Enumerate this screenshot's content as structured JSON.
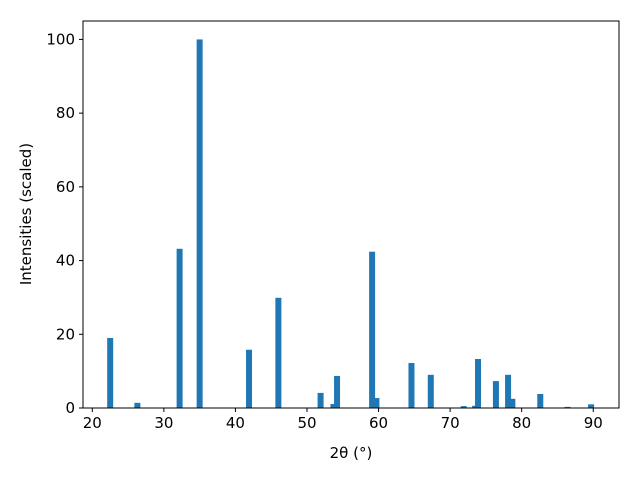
{
  "chart_data": {
    "type": "bar",
    "x": [
      22.5,
      26.3,
      32.2,
      35.0,
      41.9,
      46.0,
      51.9,
      53.7,
      54.2,
      59.1,
      59.7,
      64.6,
      67.3,
      71.9,
      73.5,
      73.9,
      76.4,
      78.1,
      78.7,
      82.6,
      86.4,
      89.7
    ],
    "values": [
      19,
      1.4,
      43.2,
      100,
      15.8,
      29.9,
      4.1,
      1.1,
      8.7,
      42.4,
      2.7,
      12.2,
      9.0,
      0.5,
      0.6,
      13.3,
      7.3,
      9.0,
      2.5,
      3.8,
      0.3,
      1.0
    ],
    "color": "#1f77b4",
    "xlabel": "2θ (°)",
    "ylabel": "Intensities (scaled)",
    "xlim": [
      18.7,
      93.6
    ],
    "xticks": [
      20,
      30,
      40,
      50,
      60,
      70,
      80,
      90
    ],
    "ylim": [
      0,
      105
    ],
    "yticks": [
      0,
      20,
      40,
      60,
      80,
      100
    ]
  }
}
